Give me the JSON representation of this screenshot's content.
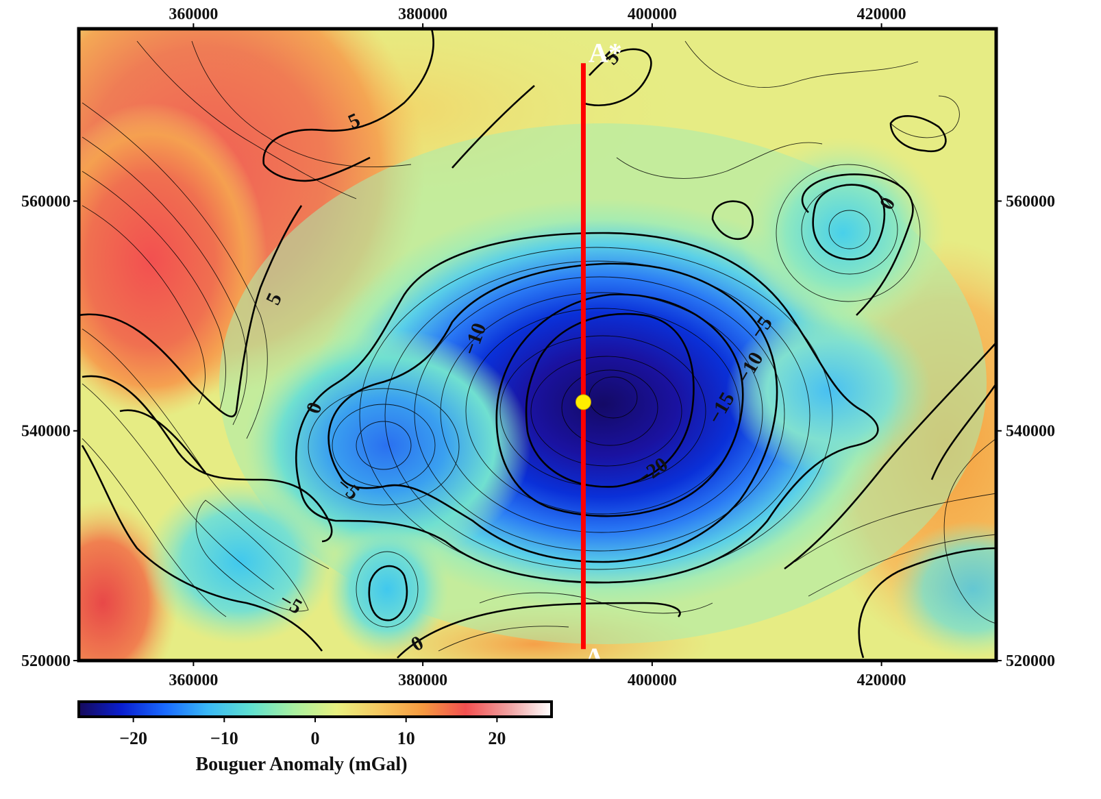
{
  "chart_data": {
    "type": "heatmap",
    "title": "",
    "x_ticks": [
      360000,
      380000,
      400000,
      420000
    ],
    "y_ticks": [
      520000,
      540000,
      560000
    ],
    "xlim": [
      350000,
      430000
    ],
    "ylim": [
      520000,
      575000
    ],
    "colorbar": {
      "title": "Bouguer Anomaly (mGal)",
      "ticks": [
        "−20",
        "−10",
        "0",
        "10",
        "20"
      ],
      "tick_values": [
        -20,
        -10,
        0,
        10,
        20
      ],
      "range": [
        -26,
        26
      ],
      "colors": [
        "#160a5a",
        "#0a1fd0",
        "#1a6aff",
        "#3ab8f5",
        "#5fe0d0",
        "#a8f0a0",
        "#e8f080",
        "#f5c860",
        "#f59a40",
        "#f25050",
        "#f0a0a0",
        "#ffffff"
      ]
    },
    "contour_labels": [
      {
        "text": "5",
        "x": 374000,
        "y": 567000,
        "angle": -25
      },
      {
        "text": "5",
        "x": 367000,
        "y": 551500,
        "angle": -65
      },
      {
        "text": "5",
        "x": 396500,
        "y": 572500,
        "angle": -45
      },
      {
        "text": "0",
        "x": 420500,
        "y": 559800,
        "angle": -60
      },
      {
        "text": "0",
        "x": 370500,
        "y": 542000,
        "angle": -70
      },
      {
        "text": "0",
        "x": 379500,
        "y": 521500,
        "angle": -30
      },
      {
        "text": "−10",
        "x": 384500,
        "y": 548000,
        "angle": -70
      },
      {
        "text": "−5",
        "x": 409500,
        "y": 549000,
        "angle": -55
      },
      {
        "text": "−10",
        "x": 408500,
        "y": 545500,
        "angle": -60
      },
      {
        "text": "−15",
        "x": 406000,
        "y": 542000,
        "angle": -60
      },
      {
        "text": "−20",
        "x": 400000,
        "y": 536500,
        "angle": -35
      },
      {
        "text": "−5",
        "x": 373500,
        "y": 535000,
        "angle": 40
      },
      {
        "text": "−5",
        "x": 368500,
        "y": 525000,
        "angle": 30
      }
    ],
    "profile": {
      "start_label": "A",
      "end_label": "A*",
      "x": 394000,
      "y_start": 521000,
      "y_end": 572000,
      "marker_y": 542500,
      "line_color": "#ff0000",
      "marker_color": "#ffee00"
    }
  }
}
